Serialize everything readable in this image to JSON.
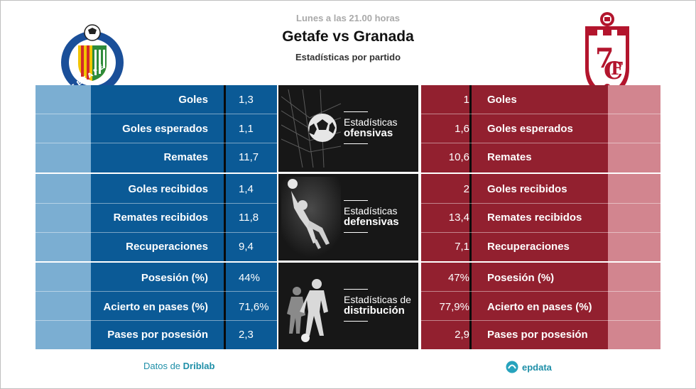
{
  "header": {
    "date": "Lunes a las 21.00 horas",
    "title": "Getafe vs Granada",
    "subtitle": "Estadísticas por partido"
  },
  "teams": {
    "home": {
      "name": "Getafe",
      "logo_text": "GETAFE C.F. S.A.D.",
      "color": "#0b5a96",
      "light": "#7baed2"
    },
    "away": {
      "name": "Granada",
      "color": "#92202f",
      "light": "#d2858f"
    }
  },
  "sections": [
    {
      "title": "Estadísticas",
      "title_bold": "ofensivas",
      "icon": "soccer-ball-net-icon",
      "rows": [
        {
          "label": "Goles",
          "home": "1,3",
          "away": "1"
        },
        {
          "label": "Goles esperados",
          "home": "1,1",
          "away": "1,6"
        },
        {
          "label": "Remates",
          "home": "11,7",
          "away": "10,6"
        }
      ]
    },
    {
      "title": "Estadísticas",
      "title_bold": "defensivas",
      "icon": "goalkeeper-icon",
      "rows": [
        {
          "label": "Goles recibidos",
          "home": "1,4",
          "away": "2"
        },
        {
          "label": "Remates recibidos",
          "home": "11,8",
          "away": "13,4"
        },
        {
          "label": "Recuperaciones",
          "home": "9,4",
          "away": "7,1"
        }
      ]
    },
    {
      "title": "Estadísticas de",
      "title_bold": "distribución",
      "icon": "players-icon",
      "rows": [
        {
          "label": "Posesión (%)",
          "home": "44%",
          "away": "47%"
        },
        {
          "label": "Acierto en pases (%)",
          "home": "71,6%",
          "away": "77,9%"
        },
        {
          "label": "Pases por posesión",
          "home": "2,3",
          "away": "2,9"
        }
      ]
    }
  ],
  "footer": {
    "source_prefix": "Datos de",
    "source_name": "Driblab",
    "brand": "epdata"
  }
}
